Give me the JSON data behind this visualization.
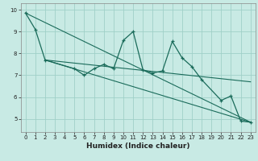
{
  "xlabel": "Humidex (Indice chaleur)",
  "xlim": [
    -0.5,
    23.5
  ],
  "ylim": [
    4.4,
    10.3
  ],
  "yticks": [
    5,
    6,
    7,
    8,
    9,
    10
  ],
  "xticks": [
    0,
    1,
    2,
    3,
    4,
    5,
    6,
    7,
    8,
    9,
    10,
    11,
    12,
    13,
    14,
    15,
    16,
    17,
    18,
    19,
    20,
    21,
    22,
    23
  ],
  "bg_color": "#c8eae4",
  "grid_color": "#a0d0c8",
  "line_color": "#1a6b5a",
  "line1": {
    "x": [
      0,
      1,
      2,
      5,
      6,
      7,
      8,
      9,
      10,
      11,
      12,
      13,
      14,
      15,
      16,
      17,
      18,
      20,
      21,
      22,
      23
    ],
    "y": [
      9.85,
      9.1,
      7.7,
      7.3,
      7.0,
      7.3,
      7.5,
      7.3,
      8.6,
      9.0,
      7.25,
      7.1,
      7.2,
      8.55,
      7.8,
      7.4,
      6.8,
      5.85,
      6.05,
      4.9,
      4.85
    ]
  },
  "trend1": {
    "x": [
      0,
      23
    ],
    "y": [
      9.85,
      4.85
    ]
  },
  "trend2": {
    "x": [
      2,
      23
    ],
    "y": [
      7.7,
      4.85
    ]
  },
  "trend3": {
    "x": [
      2,
      23
    ],
    "y": [
      7.7,
      6.7
    ]
  }
}
